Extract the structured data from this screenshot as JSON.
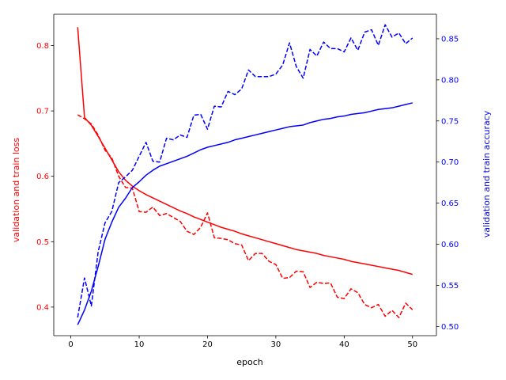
{
  "chart_data": {
    "type": "line",
    "xlabel": "epoch",
    "ylabel_left": "validation and train loss",
    "ylabel_right": "validation and train accuracy",
    "xlim": [
      -2.5,
      53.5
    ],
    "ylim_left": [
      0.3563,
      0.8478
    ],
    "ylim_right": [
      0.4888,
      0.8798
    ],
    "x_ticks": [
      0,
      10,
      20,
      30,
      40,
      50
    ],
    "y_ticks_left": [
      0.4,
      0.5,
      0.6,
      0.7,
      0.8
    ],
    "y_ticks_right": [
      0.5,
      0.55,
      0.6,
      0.65,
      0.7,
      0.75,
      0.8,
      0.85
    ],
    "y_tick_labels_left": [
      "0.4",
      "0.5",
      "0.6",
      "0.7",
      "0.8"
    ],
    "y_tick_labels_right": [
      "0.50",
      "0.55",
      "0.60",
      "0.65",
      "0.70",
      "0.75",
      "0.80",
      "0.85"
    ],
    "grid": false,
    "colors": {
      "loss": "#ff0000",
      "accuracy": "#0000ff",
      "axes": "#000000"
    },
    "x": [
      1,
      2,
      3,
      4,
      5,
      6,
      7,
      8,
      9,
      10,
      11,
      12,
      13,
      14,
      15,
      16,
      17,
      18,
      19,
      20,
      21,
      22,
      23,
      24,
      25,
      26,
      27,
      28,
      29,
      30,
      31,
      32,
      33,
      34,
      35,
      36,
      37,
      38,
      39,
      40,
      41,
      42,
      43,
      44,
      45,
      46,
      47,
      48,
      49,
      50
    ],
    "series": [
      {
        "axis": "left",
        "style": "solid",
        "color": "#ff0000",
        "values": [
          0.828,
          0.69,
          0.678,
          0.661,
          0.643,
          0.625,
          0.607,
          0.594,
          0.585,
          0.578,
          0.572,
          0.567,
          0.562,
          0.557,
          0.552,
          0.547,
          0.543,
          0.538,
          0.534,
          0.53,
          0.526,
          0.522,
          0.519,
          0.516,
          0.512,
          0.509,
          0.506,
          0.503,
          0.5,
          0.497,
          0.494,
          0.491,
          0.488,
          0.486,
          0.484,
          0.482,
          0.479,
          0.477,
          0.475,
          0.473,
          0.47,
          0.468,
          0.466,
          0.464,
          0.462,
          0.46,
          0.458,
          0.456,
          0.453,
          0.45
        ]
      },
      {
        "axis": "left",
        "style": "dashed",
        "color": "#ff0000",
        "values": [
          0.694,
          0.688,
          0.68,
          0.663,
          0.64,
          0.628,
          0.6,
          0.583,
          0.582,
          0.546,
          0.545,
          0.553,
          0.54,
          0.543,
          0.537,
          0.531,
          0.516,
          0.511,
          0.522,
          0.544,
          0.506,
          0.505,
          0.503,
          0.497,
          0.495,
          0.471,
          0.482,
          0.482,
          0.47,
          0.465,
          0.444,
          0.445,
          0.455,
          0.454,
          0.43,
          0.438,
          0.436,
          0.437,
          0.415,
          0.413,
          0.428,
          0.422,
          0.404,
          0.399,
          0.404,
          0.386,
          0.395,
          0.384,
          0.406,
          0.396
        ]
      },
      {
        "axis": "right",
        "style": "solid",
        "color": "#0000ff",
        "values": [
          0.502,
          0.52,
          0.543,
          0.573,
          0.606,
          0.627,
          0.645,
          0.656,
          0.669,
          0.676,
          0.684,
          0.69,
          0.695,
          0.698,
          0.701,
          0.704,
          0.707,
          0.711,
          0.715,
          0.718,
          0.72,
          0.722,
          0.724,
          0.727,
          0.729,
          0.731,
          0.733,
          0.735,
          0.737,
          0.739,
          0.741,
          0.743,
          0.744,
          0.745,
          0.748,
          0.75,
          0.752,
          0.753,
          0.755,
          0.756,
          0.758,
          0.759,
          0.76,
          0.762,
          0.764,
          0.765,
          0.766,
          0.768,
          0.77,
          0.772
        ]
      },
      {
        "axis": "right",
        "style": "dashed",
        "color": "#0000ff",
        "values": [
          0.511,
          0.559,
          0.525,
          0.591,
          0.626,
          0.64,
          0.675,
          0.682,
          0.69,
          0.707,
          0.724,
          0.701,
          0.7,
          0.729,
          0.727,
          0.733,
          0.73,
          0.757,
          0.758,
          0.74,
          0.768,
          0.767,
          0.786,
          0.782,
          0.789,
          0.812,
          0.804,
          0.804,
          0.804,
          0.807,
          0.818,
          0.845,
          0.816,
          0.802,
          0.837,
          0.829,
          0.846,
          0.838,
          0.838,
          0.834,
          0.851,
          0.836,
          0.858,
          0.861,
          0.842,
          0.867,
          0.852,
          0.857,
          0.844,
          0.851
        ]
      }
    ]
  }
}
